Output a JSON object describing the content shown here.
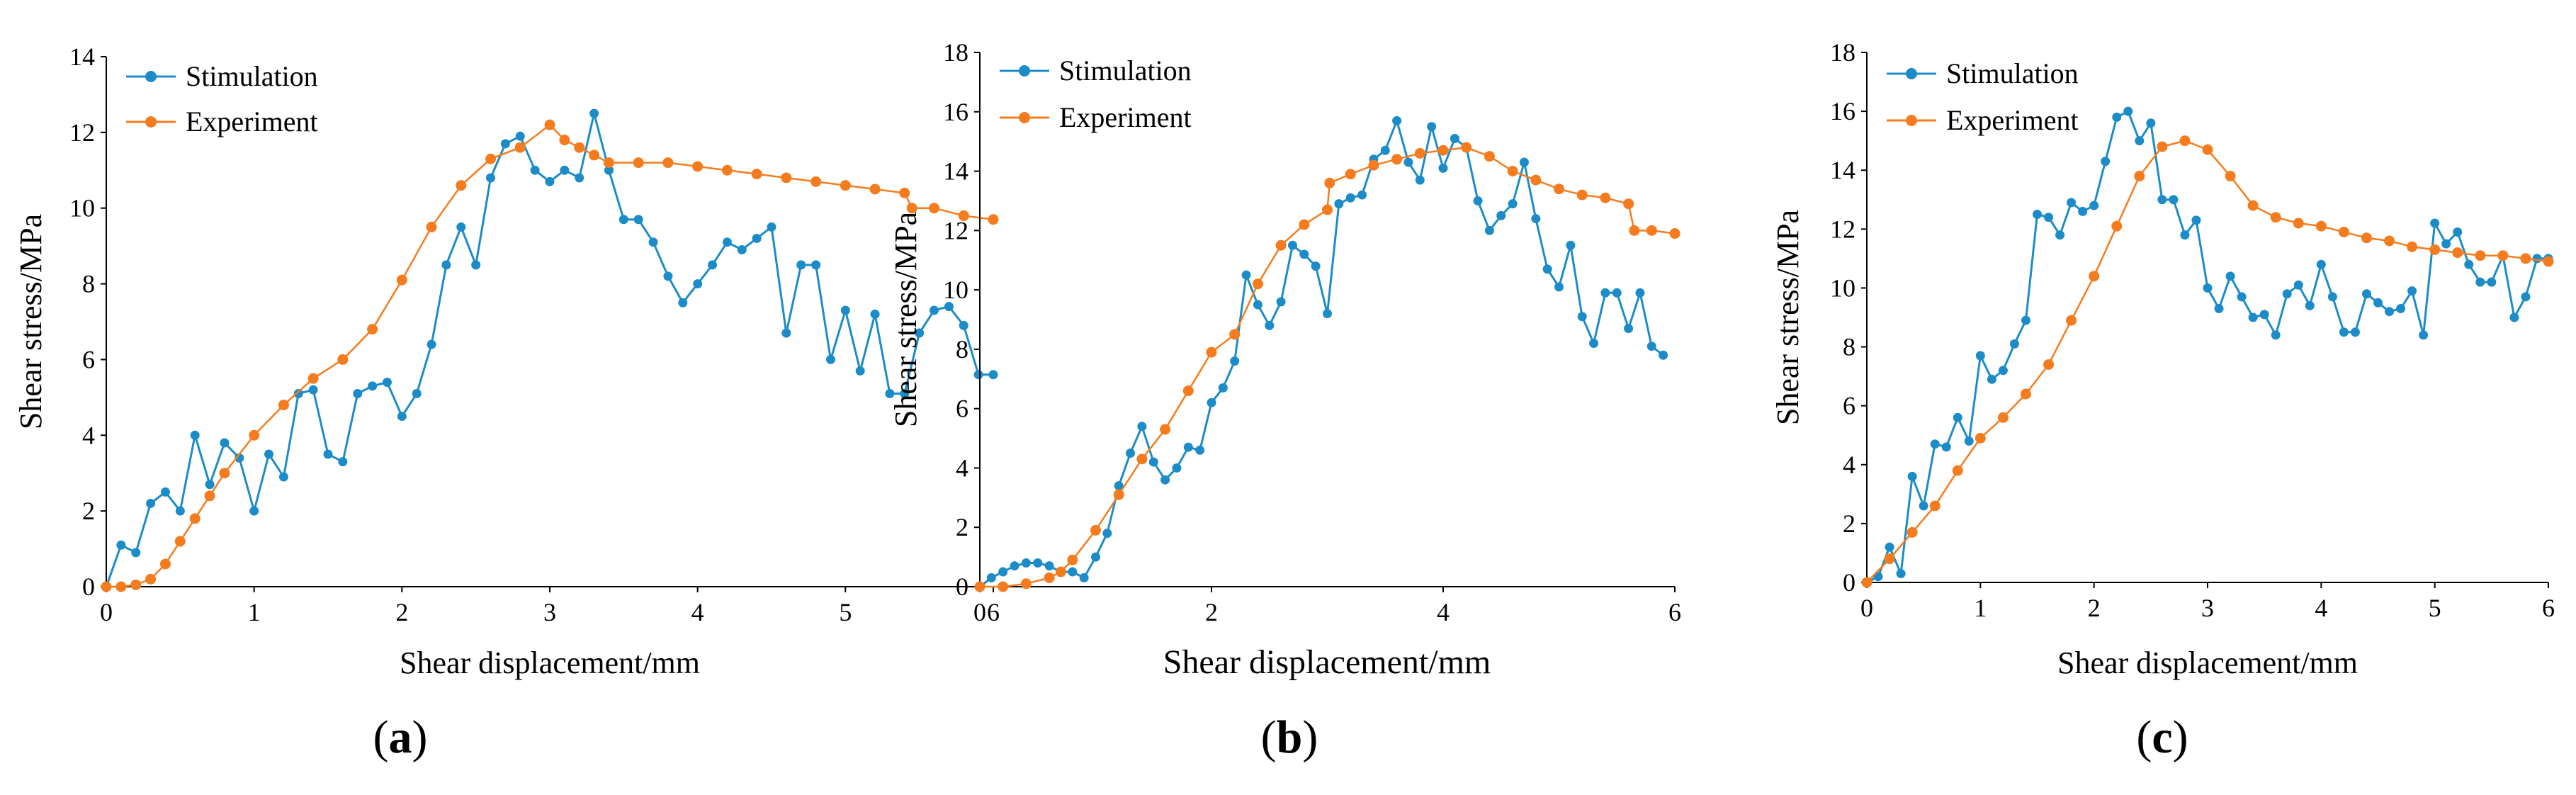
{
  "colors": {
    "stimulation": "#1B8CC8",
    "experiment": "#F57C1E",
    "axis": "#000000"
  },
  "chart_data": [
    {
      "type": "line",
      "panel_label": "(a)",
      "panel_letter": "a",
      "xlabel": "Shear displacement/mm",
      "ylabel": "Shear stress/MPa",
      "xlim": [
        0,
        6
      ],
      "ylim": [
        0,
        14
      ],
      "xticks": [
        0,
        1,
        2,
        3,
        4,
        5,
        6
      ],
      "yticks": [
        0,
        2,
        4,
        6,
        8,
        10,
        12,
        14
      ],
      "legend": [
        "Stimulation",
        "Experiment"
      ],
      "series": [
        {
          "name": "Stimulation",
          "color": "#1B8CC8",
          "x": [
            0,
            0.1,
            0.2,
            0.3,
            0.4,
            0.5,
            0.6,
            0.7,
            0.8,
            0.9,
            1.0,
            1.1,
            1.2,
            1.3,
            1.4,
            1.5,
            1.6,
            1.7,
            1.8,
            1.9,
            2.0,
            2.1,
            2.2,
            2.3,
            2.4,
            2.5,
            2.6,
            2.7,
            2.8,
            2.9,
            3.0,
            3.1,
            3.2,
            3.3,
            3.4,
            3.5,
            3.6,
            3.7,
            3.8,
            3.9,
            4.0,
            4.1,
            4.2,
            4.3,
            4.4,
            4.5,
            4.6,
            4.7,
            4.8,
            4.9,
            5.0,
            5.1,
            5.2,
            5.3,
            5.4,
            5.5,
            5.6,
            5.7,
            5.8,
            5.9,
            6.0
          ],
          "y": [
            0,
            1.1,
            0.9,
            2.2,
            2.5,
            2.0,
            4.0,
            2.7,
            3.8,
            3.4,
            2.0,
            3.5,
            2.9,
            5.1,
            5.2,
            3.5,
            3.3,
            5.1,
            5.3,
            5.4,
            4.5,
            5.1,
            6.4,
            8.5,
            9.5,
            8.5,
            10.8,
            11.7,
            11.9,
            11.0,
            10.7,
            11.0,
            10.8,
            12.5,
            11.0,
            9.7,
            9.7,
            9.1,
            8.2,
            7.5,
            8.0,
            8.5,
            9.1,
            8.9,
            9.2,
            9.5,
            6.7,
            8.5,
            8.5,
            6.0,
            7.3,
            5.7,
            7.2,
            5.1,
            5.1,
            6.7,
            7.3,
            7.4,
            6.9,
            5.6,
            5.6
          ]
        },
        {
          "name": "Experiment",
          "color": "#F57C1E",
          "x": [
            0,
            0.1,
            0.2,
            0.3,
            0.4,
            0.5,
            0.6,
            0.7,
            0.8,
            1.0,
            1.2,
            1.4,
            1.6,
            1.8,
            2.0,
            2.2,
            2.4,
            2.6,
            2.8,
            3.0,
            3.1,
            3.2,
            3.3,
            3.4,
            3.6,
            3.8,
            4.0,
            4.2,
            4.4,
            4.6,
            4.8,
            5.0,
            5.2,
            5.4,
            5.45,
            5.6,
            5.8,
            6.0
          ],
          "y": [
            0,
            0,
            0.05,
            0.2,
            0.6,
            1.2,
            1.8,
            2.4,
            3.0,
            4.0,
            4.8,
            5.5,
            6.0,
            6.8,
            8.1,
            9.5,
            10.6,
            11.3,
            11.6,
            12.2,
            11.8,
            11.6,
            11.4,
            11.2,
            11.2,
            11.2,
            11.1,
            11.0,
            10.9,
            10.8,
            10.7,
            10.6,
            10.5,
            10.4,
            10.0,
            10.0,
            9.8,
            9.7
          ]
        }
      ]
    },
    {
      "type": "line",
      "panel_label": "(b)",
      "panel_letter": "b",
      "xlabel": "Shear displacement/mm",
      "ylabel": "Shear stress/MPa",
      "xlim": [
        0,
        6
      ],
      "ylim": [
        0,
        18
      ],
      "xticks": [
        0,
        2,
        4,
        6
      ],
      "yticks": [
        0,
        2,
        4,
        6,
        8,
        10,
        12,
        14,
        16,
        18
      ],
      "legend": [
        "Stimulation",
        "Experiment"
      ],
      "series": [
        {
          "name": "Stimulation",
          "color": "#1B8CC8",
          "x": [
            0,
            0.1,
            0.2,
            0.3,
            0.4,
            0.5,
            0.6,
            0.7,
            0.8,
            0.9,
            1.0,
            1.1,
            1.2,
            1.3,
            1.4,
            1.5,
            1.6,
            1.7,
            1.8,
            1.9,
            2.0,
            2.1,
            2.2,
            2.3,
            2.4,
            2.5,
            2.6,
            2.7,
            2.8,
            2.9,
            3.0,
            3.1,
            3.2,
            3.3,
            3.4,
            3.5,
            3.6,
            3.7,
            3.8,
            3.9,
            4.0,
            4.1,
            4.2,
            4.3,
            4.4,
            4.5,
            4.6,
            4.7,
            4.8,
            4.9,
            5.0,
            5.1,
            5.2,
            5.3,
            5.4,
            5.5,
            5.6,
            5.7,
            5.8,
            5.9
          ],
          "y": [
            0,
            0.3,
            0.5,
            0.7,
            0.8,
            0.8,
            0.7,
            0.5,
            0.5,
            0.3,
            1.0,
            1.8,
            3.4,
            4.5,
            5.4,
            4.2,
            3.6,
            4.0,
            4.7,
            4.6,
            6.2,
            6.7,
            7.6,
            10.5,
            9.5,
            8.8,
            9.6,
            11.5,
            11.2,
            10.8,
            9.2,
            12.9,
            13.1,
            13.2,
            14.4,
            14.7,
            15.7,
            14.3,
            13.7,
            15.5,
            14.1,
            15.1,
            14.8,
            13.0,
            12.0,
            12.5,
            12.9,
            14.3,
            12.4,
            10.7,
            10.1,
            11.5,
            9.1,
            8.2,
            9.9,
            9.9,
            8.7,
            9.9,
            8.1,
            7.8
          ]
        },
        {
          "name": "Experiment",
          "color": "#F57C1E",
          "x": [
            0,
            0.2,
            0.4,
            0.6,
            0.7,
            0.8,
            1.0,
            1.2,
            1.4,
            1.6,
            1.8,
            2.0,
            2.2,
            2.4,
            2.6,
            2.8,
            3.0,
            3.02,
            3.2,
            3.4,
            3.6,
            3.8,
            4.0,
            4.2,
            4.4,
            4.6,
            4.8,
            5.0,
            5.2,
            5.4,
            5.6,
            5.65,
            5.8,
            6.0
          ],
          "y": [
            0,
            0,
            0.1,
            0.3,
            0.5,
            0.9,
            1.9,
            3.1,
            4.3,
            5.3,
            6.6,
            7.9,
            8.5,
            10.2,
            11.5,
            12.2,
            12.7,
            13.6,
            13.9,
            14.2,
            14.4,
            14.6,
            14.7,
            14.8,
            14.5,
            14.0,
            13.7,
            13.4,
            13.2,
            13.1,
            12.9,
            12.0,
            12.0,
            11.9
          ]
        }
      ]
    },
    {
      "type": "line",
      "panel_label": "(c)",
      "panel_letter": "c",
      "xlabel": "Shear displacement/mm",
      "ylabel": "Shear stress/MPa",
      "xlim": [
        0,
        6
      ],
      "ylim": [
        0,
        18
      ],
      "xticks": [
        0,
        1,
        2,
        3,
        4,
        5,
        6
      ],
      "yticks": [
        0,
        2,
        4,
        6,
        8,
        10,
        12,
        14,
        16,
        18
      ],
      "legend": [
        "Stimulation",
        "Experiment"
      ],
      "series": [
        {
          "name": "Stimulation",
          "color": "#1B8CC8",
          "x": [
            0,
            0.1,
            0.2,
            0.3,
            0.4,
            0.5,
            0.6,
            0.7,
            0.8,
            0.9,
            1.0,
            1.1,
            1.2,
            1.3,
            1.4,
            1.5,
            1.6,
            1.7,
            1.8,
            1.9,
            2.0,
            2.1,
            2.2,
            2.3,
            2.4,
            2.5,
            2.6,
            2.7,
            2.8,
            2.9,
            3.0,
            3.1,
            3.2,
            3.3,
            3.4,
            3.5,
            3.6,
            3.7,
            3.8,
            3.9,
            4.0,
            4.1,
            4.2,
            4.3,
            4.4,
            4.5,
            4.6,
            4.7,
            4.8,
            4.9,
            5.0,
            5.1,
            5.2,
            5.3,
            5.4,
            5.5,
            5.6,
            5.7,
            5.8,
            5.9,
            6.0
          ],
          "y": [
            0,
            0.2,
            1.2,
            0.3,
            3.6,
            2.6,
            4.7,
            4.6,
            5.6,
            4.8,
            7.7,
            6.9,
            7.2,
            8.1,
            8.9,
            12.5,
            12.4,
            11.8,
            12.9,
            12.6,
            12.8,
            14.3,
            15.8,
            16.0,
            15.0,
            15.6,
            13.0,
            13.0,
            11.8,
            12.3,
            10.0,
            9.3,
            10.4,
            9.7,
            9.0,
            9.1,
            8.4,
            9.8,
            10.1,
            9.4,
            10.8,
            9.7,
            8.5,
            8.5,
            9.8,
            9.5,
            9.2,
            9.3,
            9.9,
            8.4,
            12.2,
            11.5,
            11.9,
            10.8,
            10.2,
            10.2,
            11.1,
            9.0,
            9.7,
            11.0,
            11.0
          ]
        },
        {
          "name": "Experiment",
          "color": "#F57C1E",
          "x": [
            0,
            0.2,
            0.4,
            0.6,
            0.8,
            1.0,
            1.2,
            1.4,
            1.6,
            1.8,
            2.0,
            2.2,
            2.4,
            2.6,
            2.8,
            3.0,
            3.2,
            3.4,
            3.6,
            3.8,
            4.0,
            4.2,
            4.4,
            4.6,
            4.8,
            5.0,
            5.2,
            5.4,
            5.6,
            5.8,
            6.0
          ],
          "y": [
            0,
            0.8,
            1.7,
            2.6,
            3.8,
            4.9,
            5.6,
            6.4,
            7.4,
            8.9,
            10.4,
            12.1,
            13.8,
            14.8,
            15.0,
            14.7,
            13.8,
            12.8,
            12.4,
            12.2,
            12.1,
            11.9,
            11.7,
            11.6,
            11.4,
            11.3,
            11.2,
            11.1,
            11.1,
            11.0,
            10.9
          ]
        }
      ]
    }
  ]
}
